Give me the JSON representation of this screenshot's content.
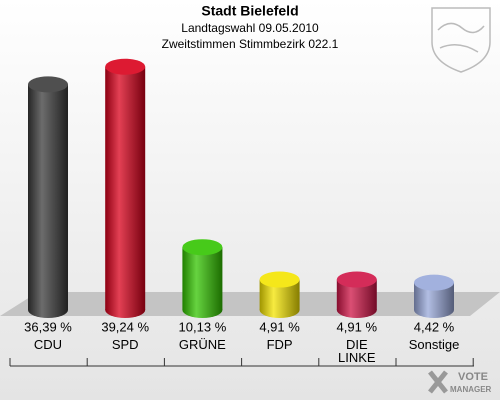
{
  "chart_data": {
    "type": "bar",
    "title": "Stadt Bielefeld",
    "subtitle": [
      "Landtagswahl 09.05.2010",
      "Zweitstimmen Stimmbezirk 022.1"
    ],
    "categories": [
      "CDU",
      "SPD",
      "GRÜNE",
      "FDP",
      "DIE LINKE",
      "Sonstige"
    ],
    "values": [
      36.39,
      39.24,
      10.13,
      4.91,
      4.91,
      4.42
    ],
    "value_labels": [
      "36,39 %",
      "39,24 %",
      "10,13 %",
      "4,91 %",
      "4,91 %",
      "4,42 %"
    ],
    "colors": [
      "#3b3b3b",
      "#d9001b",
      "#33c400",
      "#f4e400",
      "#cf1446",
      "#98a8da"
    ],
    "logo_text": [
      "VOTE",
      "MANAGER"
    ]
  }
}
